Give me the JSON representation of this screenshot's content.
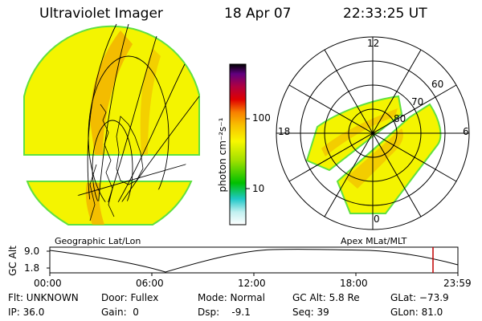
{
  "header": {
    "instrument": "Ultraviolet Imager",
    "date": "18 Apr 07",
    "time": "22:33:25 UT"
  },
  "colorbar": {
    "unit_label": "photon cm⁻²s⁻¹",
    "ticks": [
      "100",
      "10"
    ]
  },
  "polar_plot": {
    "mlt_labels": [
      "12",
      "18",
      "6",
      "0"
    ],
    "lat_labels": [
      "60",
      "70",
      "80"
    ]
  },
  "panel_labels": {
    "left": "Geographic Lat/Lon",
    "right": "Apex MLat/MLT"
  },
  "altitude_track": {
    "axis_label": "GC Alt",
    "y_ticks": [
      "9.0",
      "1.8"
    ],
    "x_ticks": [
      "00:00",
      "06:00",
      "12:00",
      "18:00",
      "23:59"
    ]
  },
  "status": {
    "flt": "Flt: UNKNOWN",
    "ip": "IP: 36.0",
    "door": "Door: Fullex",
    "gain": "Gain:  0",
    "mode": "Mode: Normal",
    "dsp": "Dsp:    -9.1",
    "gc_alt": "GC Alt: 5.8 Re",
    "seq": "Seq: 39",
    "glat": "GLat: −73.9",
    "glon": "GLon: 81.0"
  },
  "colors": {
    "image_yellow": "#f4f400",
    "image_orange": "#f0a000",
    "image_green": "#60e040",
    "track_marker": "#c00000"
  }
}
